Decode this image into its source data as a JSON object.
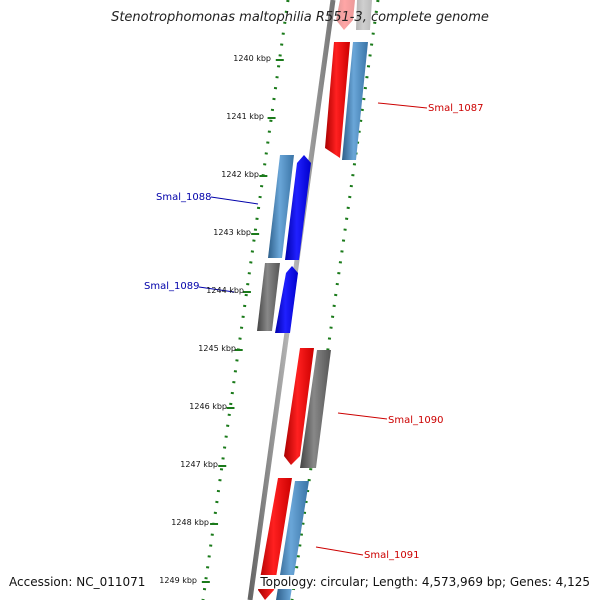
{
  "title": "Stenotrophomonas maltophilia R551-3, complete genome",
  "footer": {
    "accession": "Accession: NC_011071",
    "summary": "Topology: circular; Length: 4,573,969 bp; Genes: 4,125"
  },
  "ticks": [
    {
      "label": "1240 kbp"
    },
    {
      "label": "1241 kbp"
    },
    {
      "label": "1242 kbp"
    },
    {
      "label": "1243 kbp"
    },
    {
      "label": "1244 kbp"
    },
    {
      "label": "1245 kbp"
    },
    {
      "label": "1246 kbp"
    },
    {
      "label": "1247 kbp"
    },
    {
      "label": "1248 kbp"
    },
    {
      "label": "1249 kbp"
    }
  ],
  "genes": [
    {
      "name": "Smal_1087",
      "color": "#cc0000"
    },
    {
      "name": "Smal_1088",
      "color": "#0000aa"
    },
    {
      "name": "Smal_1089",
      "color": "#0000aa"
    },
    {
      "name": "Smal_1090",
      "color": "#cc0000"
    },
    {
      "name": "Smal_1091",
      "color": "#cc0000"
    }
  ],
  "colors": {
    "red_feature": "#ff0000",
    "blue_feature": "#0000ff",
    "steel_feature": "#4a86b8",
    "gray_feature": "#666666",
    "backbone": "#888888",
    "tick_green": "#1a7a1a"
  }
}
